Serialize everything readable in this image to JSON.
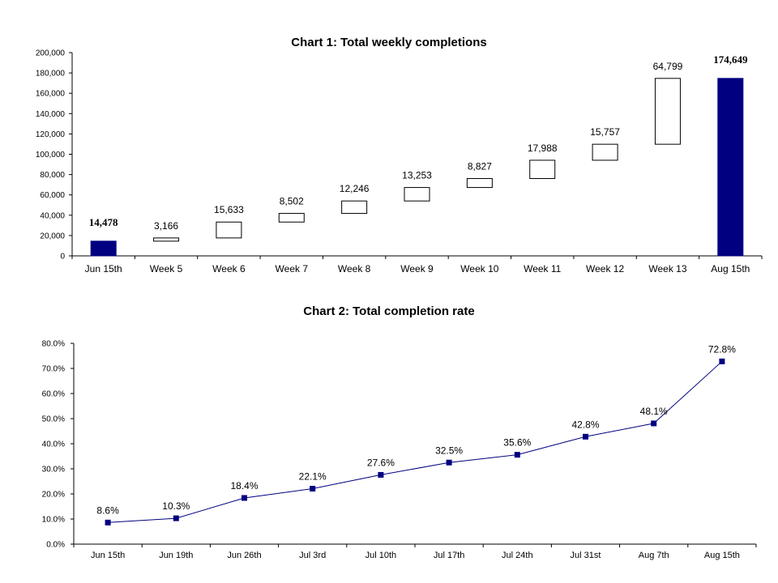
{
  "chart_data": [
    {
      "type": "bar",
      "subtype": "waterfall",
      "title": "Chart 1: Total weekly completions",
      "categories": [
        "Jun 15th",
        "Week 5",
        "Week 6",
        "Week 7",
        "Week 8",
        "Week 9",
        "Week 10",
        "Week 11",
        "Week 12",
        "Week 13",
        "Aug 15th"
      ],
      "values": [
        14478,
        3166,
        15633,
        8502,
        12246,
        13253,
        8827,
        17988,
        15757,
        64799,
        174649
      ],
      "labels": [
        "14,478",
        "3,166",
        "15,633",
        "8,502",
        "12,246",
        "13,253",
        "8,827",
        "17,988",
        "15,757",
        "64,799",
        "174,649"
      ],
      "total_bars": [
        0,
        10
      ],
      "ylim": [
        0,
        200000
      ],
      "yticks": [
        "0",
        "20,000",
        "40,000",
        "60,000",
        "80,000",
        "100,000",
        "120,000",
        "140,000",
        "160,000",
        "180,000",
        "200,000"
      ],
      "colors": {
        "total": "#000080",
        "step_fill": "#ffffff",
        "step_stroke": "#000000"
      },
      "grid": false
    },
    {
      "type": "line",
      "title": "Chart 2: Total completion rate",
      "categories": [
        "Jun 15th",
        "Jun 19th",
        "Jun 26th",
        "Jul 3rd",
        "Jul 10th",
        "Jul 17th",
        "Jul 24th",
        "Jul 31st",
        "Aug 7th",
        "Aug 15th"
      ],
      "values": [
        8.6,
        10.3,
        18.4,
        22.1,
        27.6,
        32.5,
        35.6,
        42.8,
        48.1,
        72.8
      ],
      "labels": [
        "8.6%",
        "10.3%",
        "18.4%",
        "22.1%",
        "27.6%",
        "32.5%",
        "35.6%",
        "42.8%",
        "48.1%",
        "72.8%"
      ],
      "ylim": [
        0,
        80
      ],
      "yticks": [
        "0.0%",
        "10.0%",
        "20.0%",
        "30.0%",
        "40.0%",
        "50.0%",
        "60.0%",
        "70.0%",
        "80.0%"
      ],
      "colors": {
        "line": "#000080",
        "marker": "#000080"
      },
      "marker": "square",
      "grid": false
    }
  ]
}
